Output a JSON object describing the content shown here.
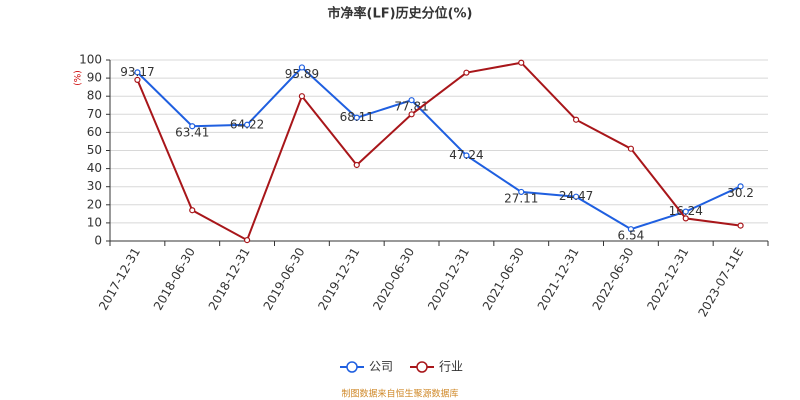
{
  "chart_data": {
    "type": "line",
    "title": "市净率(LF)历史分位(%)",
    "y_label": "(%)",
    "source": "制图数据来自恒生聚源数据库",
    "categories": [
      "2017-12-31",
      "2018-06-30",
      "2018-12-31",
      "2019-06-30",
      "2019-12-31",
      "2020-06-30",
      "2020-12-31",
      "2021-06-30",
      "2021-12-31",
      "2022-06-30",
      "2022-12-31",
      "2023-07-11E"
    ],
    "series": [
      {
        "name": "公司",
        "color": "#1f5fe0",
        "show_labels": true,
        "values": [
          93.17,
          63.41,
          64.22,
          95.89,
          68.11,
          77.81,
          47.24,
          27.11,
          24.47,
          6.54,
          16.24,
          30.2
        ]
      },
      {
        "name": "行业",
        "color": "#a8161a",
        "show_labels": false,
        "values": [
          89,
          17,
          0.5,
          80,
          42,
          70,
          93,
          98.5,
          67,
          51,
          12.5,
          8.5
        ]
      }
    ],
    "ylim": [
      0,
      100
    ],
    "yticks": [
      0,
      10,
      20,
      30,
      40,
      50,
      60,
      70,
      80,
      90,
      100
    ],
    "grid": true,
    "legend": "bottom"
  }
}
